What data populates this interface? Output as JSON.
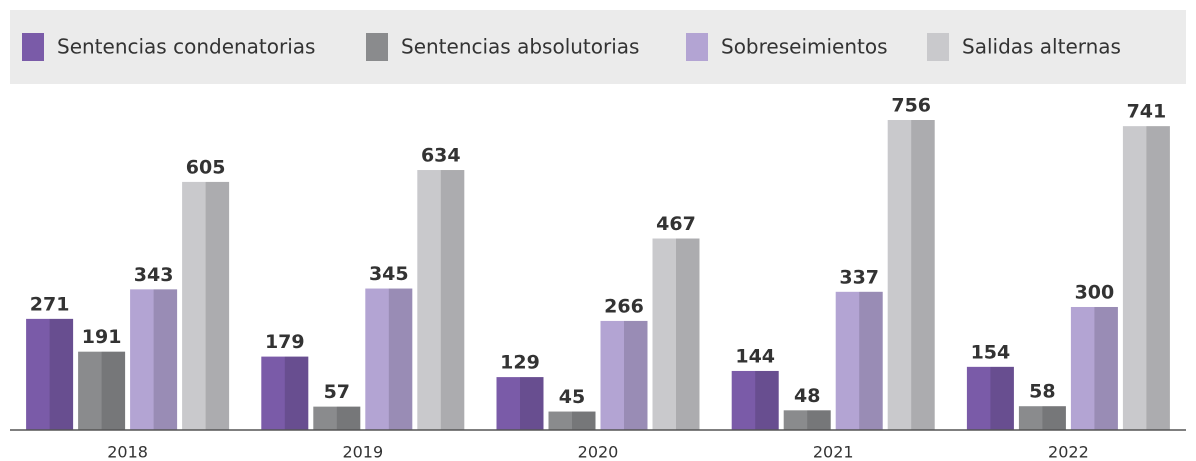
{
  "chart_data": {
    "type": "bar",
    "categories": [
      "2018",
      "2019",
      "2020",
      "2021",
      "2022"
    ],
    "series": [
      {
        "name": "Sentencias condenatorias",
        "color": "#7a5ba8",
        "values": [
          271,
          179,
          129,
          144,
          154
        ]
      },
      {
        "name": "Sentencias absolutorias",
        "color": "#8a8b8d",
        "values": [
          191,
          57,
          45,
          48,
          58
        ]
      },
      {
        "name": "Sobreseimientos",
        "color": "#b3a4d3",
        "values": [
          343,
          345,
          266,
          337,
          300
        ]
      },
      {
        "name": "Salidas alternas",
        "color": "#c9c9cc",
        "values": [
          605,
          634,
          467,
          756,
          741
        ]
      }
    ],
    "legend": "top"
  }
}
